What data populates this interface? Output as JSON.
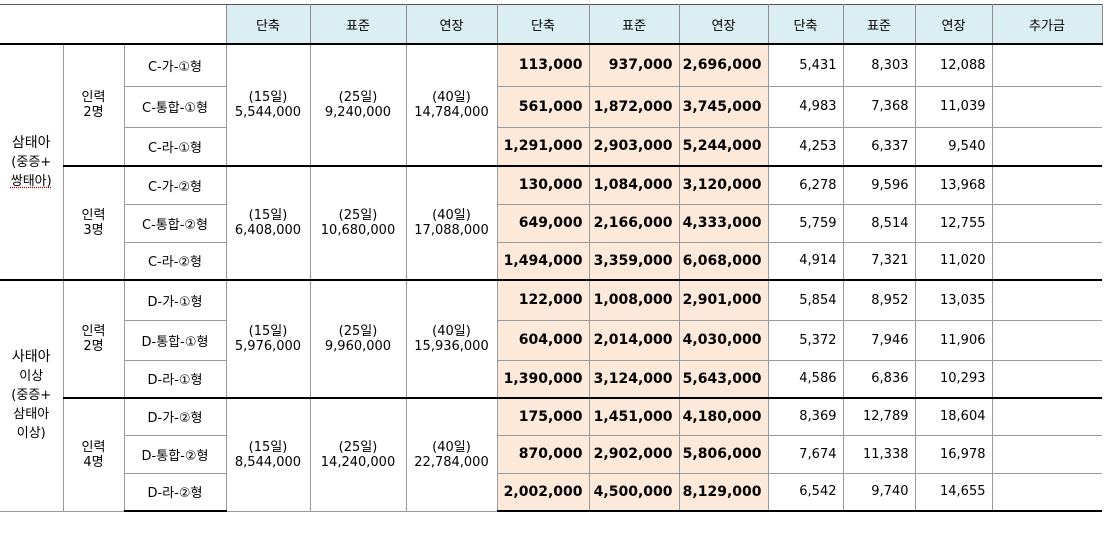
{
  "header": [
    "단축",
    "표준",
    "연장",
    "단축",
    "표준",
    "연장",
    "단축",
    "표준",
    "연장",
    "추가금"
  ],
  "groups": [
    {
      "label_lines": [
        "삼태아",
        "(중증+",
        "쌍태아)"
      ],
      "subgroups": [
        {
          "people": [
            "인력",
            "2명"
          ],
          "base": [
            [
              "(15일)",
              "5,544,000"
            ],
            [
              "(25일)",
              "9,240,000"
            ],
            [
              "(40일)",
              "14,784,000"
            ]
          ],
          "rows": [
            {
              "type": "C-가-①형",
              "amounts": [
                "113,000",
                "937,000",
                "2,696,000"
              ],
              "values": [
                "5,431",
                "8,303",
                "12,088"
              ]
            },
            {
              "type": "C-통합-①형",
              "amounts": [
                "561,000",
                "1,872,000",
                "3,745,000"
              ],
              "values": [
                "4,983",
                "7,368",
                "11,039"
              ]
            },
            {
              "type": "C-라-①형",
              "amounts": [
                "1,291,000",
                "2,903,000",
                "5,244,000"
              ],
              "values": [
                "4,253",
                "6,337",
                "9,540"
              ]
            }
          ]
        },
        {
          "people": [
            "인력",
            "3명"
          ],
          "base": [
            [
              "(15일)",
              "6,408,000"
            ],
            [
              "(25일)",
              "10,680,000"
            ],
            [
              "(40일)",
              "17,088,000"
            ]
          ],
          "rows": [
            {
              "type": "C-가-②형",
              "amounts": [
                "130,000",
                "1,084,000",
                "3,120,000"
              ],
              "values": [
                "6,278",
                "9,596",
                "13,968"
              ]
            },
            {
              "type": "C-통합-②형",
              "amounts": [
                "649,000",
                "2,166,000",
                "4,333,000"
              ],
              "values": [
                "5,759",
                "8,514",
                "12,755"
              ]
            },
            {
              "type": "C-라-②형",
              "amounts": [
                "1,494,000",
                "3,359,000",
                "6,068,000"
              ],
              "values": [
                "4,914",
                "7,321",
                "11,020"
              ]
            }
          ]
        }
      ]
    },
    {
      "label_lines": [
        "사태아",
        "이상",
        "(중증+",
        "삼태아",
        "이상)"
      ],
      "subgroups": [
        {
          "people": [
            "인력",
            "2명"
          ],
          "base": [
            [
              "(15일)",
              "5,976,000"
            ],
            [
              "(25일)",
              "9,960,000"
            ],
            [
              "(40일)",
              "15,936,000"
            ]
          ],
          "rows": [
            {
              "type": "D-가-①형",
              "amounts": [
                "122,000",
                "1,008,000",
                "2,901,000"
              ],
              "values": [
                "5,854",
                "8,952",
                "13,035"
              ]
            },
            {
              "type": "D-통합-①형",
              "amounts": [
                "604,000",
                "2,014,000",
                "4,030,000"
              ],
              "values": [
                "5,372",
                "7,946",
                "11,906"
              ]
            },
            {
              "type": "D-라-①형",
              "amounts": [
                "1,390,000",
                "3,124,000",
                "5,643,000"
              ],
              "values": [
                "4,586",
                "6,836",
                "10,293"
              ]
            }
          ]
        },
        {
          "people": [
            "인력",
            "4명"
          ],
          "base": [
            [
              "(15일)",
              "8,544,000"
            ],
            [
              "(25일)",
              "14,240,000"
            ],
            [
              "(40일)",
              "22,784,000"
            ]
          ],
          "rows": [
            {
              "type": "D-가-②형",
              "amounts": [
                "175,000",
                "1,451,000",
                "4,180,000"
              ],
              "values": [
                "8,369",
                "12,789",
                "18,604"
              ]
            },
            {
              "type": "D-통합-②형",
              "amounts": [
                "870,000",
                "2,902,000",
                "5,806,000"
              ],
              "values": [
                "7,674",
                "11,338",
                "16,978"
              ]
            },
            {
              "type": "D-라-②형",
              "amounts": [
                "2,002,000",
                "4,500,000",
                "8,129,000"
              ],
              "values": [
                "6,542",
                "9,740",
                "14,655"
              ]
            }
          ]
        }
      ]
    }
  ]
}
